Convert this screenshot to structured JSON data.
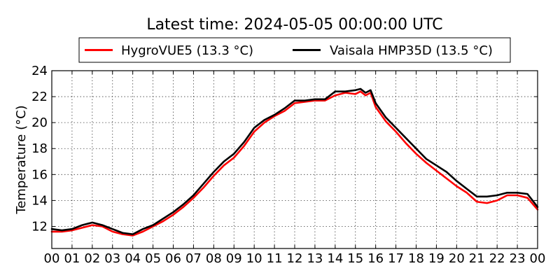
{
  "chart_data": {
    "type": "line",
    "title": "Latest time: 2024-05-05 00:00:00 UTC",
    "xlabel": "",
    "ylabel": "Temperature (°C)",
    "xlim": [
      0,
      24
    ],
    "ylim": [
      10.3,
      24
    ],
    "x_ticks": [
      "00",
      "01",
      "02",
      "03",
      "04",
      "05",
      "06",
      "07",
      "08",
      "09",
      "10",
      "11",
      "12",
      "13",
      "14",
      "15",
      "16",
      "17",
      "18",
      "19",
      "20",
      "21",
      "22",
      "23",
      "00"
    ],
    "y_ticks": [
      12,
      14,
      16,
      18,
      20,
      22,
      24
    ],
    "grid": true,
    "legend_position": "top",
    "x": [
      0,
      0.5,
      1,
      1.5,
      2,
      2.5,
      3,
      3.5,
      4,
      4.5,
      5,
      5.5,
      6,
      6.5,
      7,
      7.5,
      8,
      8.5,
      9,
      9.5,
      10,
      10.5,
      11,
      11.5,
      12,
      12.5,
      13,
      13.5,
      14,
      14.5,
      15,
      15.25,
      15.5,
      15.75,
      16,
      16.5,
      17,
      17.5,
      18,
      18.5,
      19,
      19.5,
      20,
      20.5,
      21,
      21.5,
      22,
      22.5,
      23,
      23.5,
      24
    ],
    "series": [
      {
        "name": "HygroVUE5 (13.3 °C)",
        "color": "#ff0000",
        "values": [
          11.6,
          11.6,
          11.7,
          11.9,
          12.1,
          12.0,
          11.6,
          11.4,
          11.3,
          11.6,
          12.0,
          12.4,
          12.9,
          13.5,
          14.2,
          15.0,
          15.9,
          16.7,
          17.3,
          18.2,
          19.3,
          20.0,
          20.5,
          20.9,
          21.5,
          21.6,
          21.7,
          21.7,
          22.1,
          22.3,
          22.2,
          22.4,
          22.1,
          22.3,
          21.2,
          20.1,
          19.3,
          18.4,
          17.6,
          16.9,
          16.3,
          15.7,
          15.1,
          14.6,
          13.9,
          13.8,
          14.0,
          14.4,
          14.4,
          14.2,
          13.3
        ]
      },
      {
        "name": "Vaisala HMP35D (13.5 °C)",
        "color": "#000000",
        "values": [
          11.8,
          11.7,
          11.8,
          12.1,
          12.3,
          12.1,
          11.8,
          11.5,
          11.4,
          11.8,
          12.1,
          12.6,
          13.1,
          13.7,
          14.4,
          15.3,
          16.2,
          17.0,
          17.6,
          18.5,
          19.6,
          20.2,
          20.6,
          21.1,
          21.7,
          21.7,
          21.8,
          21.8,
          22.4,
          22.4,
          22.5,
          22.6,
          22.3,
          22.5,
          21.5,
          20.4,
          19.6,
          18.8,
          18.0,
          17.2,
          16.7,
          16.2,
          15.5,
          14.9,
          14.3,
          14.3,
          14.4,
          14.6,
          14.6,
          14.5,
          13.5
        ]
      }
    ]
  }
}
